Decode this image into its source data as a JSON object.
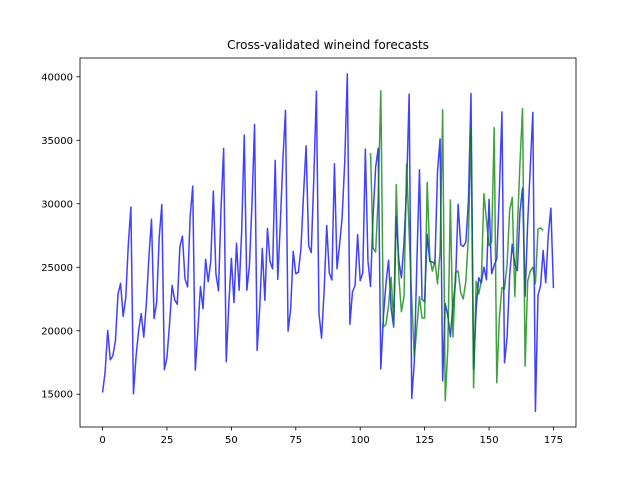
{
  "chart_data": {
    "type": "line",
    "title": "Cross-validated wineind forecasts",
    "xlabel": "",
    "ylabel": "",
    "xlim": [
      -8.75,
      183.75
    ],
    "ylim": [
      12420,
      41480
    ],
    "xticks": [
      0,
      25,
      50,
      75,
      100,
      125,
      150,
      175
    ],
    "yticks": [
      15000,
      20000,
      25000,
      30000,
      35000,
      40000
    ],
    "grid": false,
    "series": [
      {
        "color": "#0000ff",
        "x_start": 0,
        "values": [
          15136,
          16733,
          20016,
          17708,
          18019,
          19227,
          22893,
          23739,
          21133,
          22591,
          26786,
          29740,
          15028,
          17977,
          20008,
          21354,
          19498,
          22125,
          25817,
          28779,
          20960,
          22254,
          27392,
          29945,
          16933,
          17892,
          20533,
          23569,
          22417,
          22084,
          26580,
          27454,
          24081,
          23451,
          28991,
          31386,
          16896,
          20045,
          23471,
          21747,
          25621,
          23859,
          25500,
          30998,
          24475,
          23145,
          29701,
          34365,
          17556,
          22077,
          25702,
          22214,
          26886,
          23191,
          27831,
          35406,
          23195,
          25110,
          30009,
          36242,
          18450,
          21845,
          26488,
          22394,
          28057,
          25451,
          24872,
          33424,
          24052,
          28449,
          33533,
          37351,
          19969,
          21701,
          26249,
          24493,
          24603,
          26485,
          30723,
          34569,
          26689,
          26157,
          32064,
          38870,
          21337,
          19419,
          23166,
          28286,
          24570,
          24001,
          33151,
          24878,
          26804,
          28967,
          33311,
          40226,
          20504,
          23060,
          23562,
          27562,
          23940,
          24584,
          34303,
          25517,
          23494,
          29095,
          32903,
          34379,
          16991,
          21109,
          23740,
          25552,
          21752,
          20294,
          29009,
          25500,
          24166,
          26960,
          31222,
          38641,
          14672,
          17543,
          25453,
          32683,
          22449,
          22316,
          27595,
          25451,
          25421,
          25288,
          32568,
          35110,
          16052,
          22146,
          21198,
          19543,
          22084,
          23816,
          29961,
          26773,
          26635,
          26972,
          30207,
          38687,
          16974,
          21697,
          24179,
          23757,
          25013,
          24019,
          30345,
          24488,
          25156,
          25650,
          30923,
          37240,
          17466,
          19463,
          24352,
          26805,
          25236,
          24735,
          29356,
          31234,
          22724,
          28496,
          32857,
          37198,
          13652,
          22784,
          23565,
          26323,
          23779,
          27549,
          29660,
          23356
        ]
      },
      {
        "color": "#008000",
        "x_start": 104,
        "values": [
          34000,
          26500,
          26200,
          30600,
          38900,
          20300,
          20500,
          22000,
          24200,
          20600,
          31500,
          24200,
          21500,
          22700,
          33100,
          27700,
          22400,
          17900,
          20300,
          22700,
          21000,
          21000,
          31700,
          25800,
          24700,
          25500,
          23700,
          26200,
          37400,
          14500,
          18600,
          30300,
          19500,
          24600,
          24700,
          23000,
          22500,
          23900,
          27400,
          36000,
          15500,
          23900,
          22900,
          23900,
          30800,
          28700,
          26700,
          27000,
          36000,
          15900,
          21000,
          23400,
          23300,
          25200,
          29500,
          30500,
          22700,
          28100,
          33200,
          37500,
          17200,
          23900,
          24700,
          25000,
          23700,
          28000,
          28100,
          27900
        ]
      }
    ]
  }
}
